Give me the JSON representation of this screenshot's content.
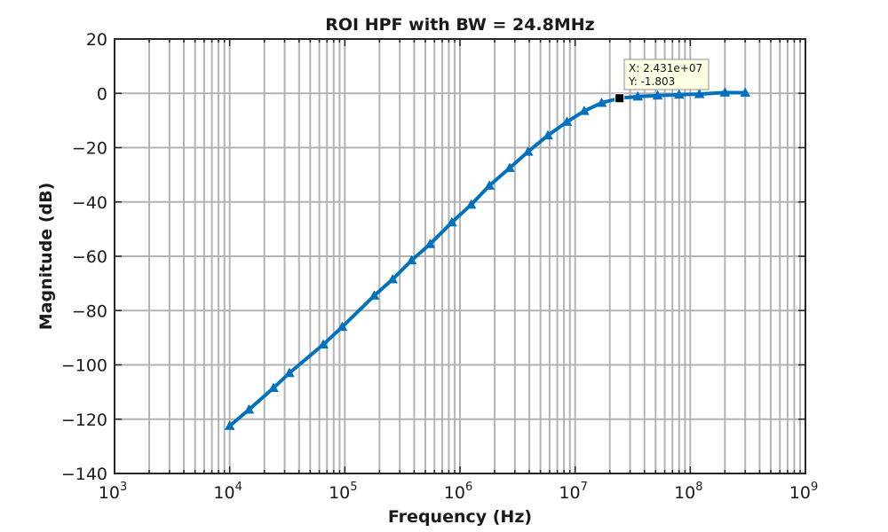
{
  "chart_data": {
    "type": "line",
    "title": "ROI HPF with BW = 24.8MHz",
    "xlabel": "Frequency (Hz)",
    "ylabel": "Magnitude (dB)",
    "xscale": "log",
    "xlim": [
      1000,
      1000000000
    ],
    "ylim": [
      -140,
      20
    ],
    "x_ticks": [
      {
        "base": "10",
        "exp": "3",
        "value": 1000
      },
      {
        "base": "10",
        "exp": "4",
        "value": 10000
      },
      {
        "base": "10",
        "exp": "5",
        "value": 100000
      },
      {
        "base": "10",
        "exp": "6",
        "value": 1000000
      },
      {
        "base": "10",
        "exp": "7",
        "value": 10000000
      },
      {
        "base": "10",
        "exp": "8",
        "value": 100000000
      },
      {
        "base": "10",
        "exp": "9",
        "value": 1000000000
      }
    ],
    "y_ticks": [
      "20",
      "0",
      "−20",
      "−40",
      "−60",
      "−80",
      "−100",
      "−120",
      "−140"
    ],
    "y_tick_values": [
      20,
      0,
      -20,
      -40,
      -60,
      -80,
      -100,
      -120,
      -140
    ],
    "grid": true,
    "minor_grid": true,
    "line_color": "#0072BD",
    "marker": "triangle",
    "series": [
      {
        "x": [
          10000,
          14700,
          24000,
          33000,
          65000,
          95000,
          180000,
          260000,
          380000,
          550000,
          850000,
          1250000,
          1800000,
          2700000,
          3900000,
          5800000,
          8500000,
          12000000,
          17000000,
          24310000,
          35000000,
          52000000,
          80000000,
          120000000,
          200000000,
          300000000
        ],
        "y": [
          -122.5,
          -116.5,
          -108.5,
          -103,
          -92.5,
          -86,
          -74.5,
          -68.5,
          -61.5,
          -55.5,
          -47.5,
          -41,
          -34,
          -27.5,
          -21.5,
          -15.5,
          -10.5,
          -6.5,
          -3.5,
          -1.803,
          -1.2,
          -0.8,
          -0.5,
          -0.3,
          0.3,
          0.2
        ]
      }
    ],
    "datatip": {
      "x": 24310000,
      "y": -1.803,
      "x_text": "X: 2.431e+07",
      "y_text": "Y: -1.803"
    }
  }
}
